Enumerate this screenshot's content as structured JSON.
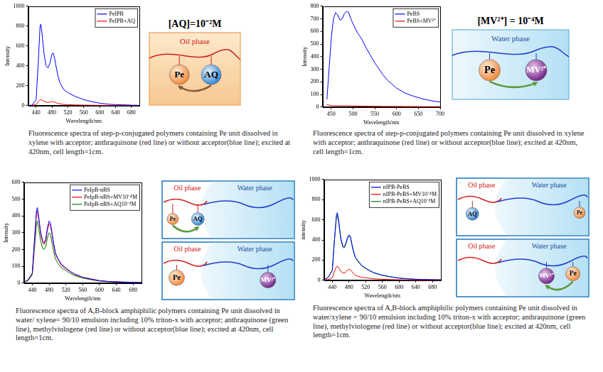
{
  "chart_data": [
    {
      "type": "line",
      "x_label": "Wavelength/nm",
      "y_label": "Intensity",
      "caption": "Fluorescence spectra of step-p-conjugated polymers containing Pe unit dissolved in xylene with acceptor; anthraquinone (red line) or without acceptor(blue line); excited at 420nm, cell length=1cm.",
      "x": [
        420,
        430,
        440,
        445,
        450,
        452,
        455,
        460,
        465,
        470,
        475,
        480,
        483,
        487,
        490,
        495,
        500,
        510,
        520,
        530,
        540,
        560,
        580,
        600,
        620,
        640,
        660,
        680,
        700
      ],
      "series": [
        {
          "name": "PeIPB",
          "color": "#0000ff",
          "values": [
            2,
            5,
            60,
            400,
            800,
            820,
            720,
            520,
            400,
            380,
            430,
            520,
            530,
            470,
            400,
            300,
            230,
            160,
            130,
            110,
            90,
            60,
            40,
            25,
            15,
            10,
            8,
            5,
            3
          ]
        },
        {
          "name": "PeIPB+AQ",
          "color": "#ff0000",
          "values": [
            2,
            3,
            10,
            40,
            60,
            62,
            55,
            45,
            35,
            32,
            35,
            40,
            40,
            36,
            30,
            22,
            18,
            12,
            10,
            8,
            7,
            5,
            4,
            3,
            2,
            2,
            1,
            1,
            1
          ]
        }
      ],
      "xlim": [
        420,
        700
      ],
      "xticks": [
        440,
        480,
        520,
        560,
        600,
        640,
        680
      ],
      "ylim": [
        0,
        1000
      ],
      "yticks": [
        0,
        200,
        400,
        600,
        800,
        1000
      ],
      "grid": false,
      "legend": "upper right"
    },
    {
      "type": "line",
      "x_label": "Wavelength/nm",
      "y_label": "Intensity",
      "caption": "Fluorescence spectra of step-p-conjugated polymers containing Pe unit dissolved in xylene with acceptor; anthraquinone (red line) or without acceptor(blue line); excited at 420nm, cell length=1cm.",
      "x": [
        440,
        445,
        450,
        455,
        460,
        465,
        470,
        475,
        480,
        485,
        490,
        495,
        500,
        510,
        520,
        530,
        540,
        550,
        560,
        570,
        580,
        590,
        600,
        620,
        640,
        660,
        680,
        700
      ],
      "series": [
        {
          "name": "PeBS",
          "color": "#0000ff",
          "values": [
            60,
            300,
            550,
            700,
            750,
            730,
            690,
            700,
            740,
            760,
            750,
            700,
            660,
            590,
            540,
            470,
            410,
            350,
            300,
            250,
            210,
            180,
            150,
            110,
            85,
            65,
            50,
            40
          ]
        },
        {
          "name": "PeBS+MV²⁺",
          "color": "#ff0000",
          "values": [
            20,
            15,
            12,
            10,
            10,
            10,
            10,
            10,
            10,
            10,
            10,
            9,
            9,
            8,
            8,
            7,
            7,
            6,
            6,
            5,
            5,
            5,
            5,
            4,
            4,
            3,
            3,
            3
          ]
        }
      ],
      "xlim": [
        430,
        700
      ],
      "xticks": [
        450,
        500,
        550,
        600,
        650,
        700
      ],
      "ylim": [
        0,
        800
      ],
      "yticks": [
        0,
        100,
        200,
        300,
        400,
        500,
        600,
        700,
        800
      ],
      "grid": false,
      "legend": "upper right"
    },
    {
      "type": "line",
      "x_label": "Wavelength/nm",
      "y_label": "Intensity",
      "caption": "Fluorescence spectra of A,B-block amphiphilic polymers containing Pe unit dissolved in water/ xylene= 90/10 emulsion including 10% triton-x with acceptor; anthraquinone (green line), methylviologene (red line) or without acceptor(blue line); excited at 420nm, cell length=1cm.",
      "x": [
        420,
        430,
        440,
        445,
        450,
        452,
        455,
        460,
        465,
        468,
        472,
        476,
        480,
        483,
        487,
        490,
        495,
        500,
        510,
        520,
        530,
        540,
        560,
        580,
        600,
        620,
        640,
        660,
        680,
        700
      ],
      "series": [
        {
          "name": "PeIpB-nBS",
          "color": "#0000ff",
          "values": [
            5,
            20,
            60,
            250,
            430,
            450,
            400,
            300,
            250,
            240,
            260,
            330,
            370,
            360,
            300,
            250,
            180,
            150,
            110,
            90,
            70,
            55,
            35,
            25,
            15,
            10,
            8,
            6,
            5,
            4
          ]
        },
        {
          "name": "PeIpB-nBS+MV10⁻⁴M",
          "color": "#ff0000",
          "values": [
            5,
            20,
            55,
            240,
            410,
            430,
            385,
            290,
            240,
            230,
            250,
            315,
            355,
            345,
            290,
            240,
            175,
            145,
            105,
            85,
            68,
            52,
            33,
            23,
            14,
            10,
            8,
            6,
            5,
            4
          ]
        },
        {
          "name": "PeIpB-nBS+AQ10⁻²M",
          "color": "#008000",
          "values": [
            5,
            15,
            50,
            200,
            350,
            370,
            330,
            250,
            205,
            200,
            215,
            270,
            300,
            290,
            240,
            200,
            145,
            120,
            90,
            75,
            58,
            45,
            30,
            20,
            12,
            8,
            6,
            5,
            4,
            3
          ]
        }
      ],
      "xlim": [
        420,
        700
      ],
      "xticks": [
        440,
        480,
        520,
        560,
        600,
        640,
        680
      ],
      "ylim": [
        0,
        600
      ],
      "yticks": [
        0,
        100,
        200,
        300,
        400,
        500,
        600
      ],
      "grid": false,
      "legend": "upper right"
    },
    {
      "type": "line",
      "x_label": "Wavelength/nm",
      "y_label": "intensity",
      "caption": "Fluorescence spectra of A,B-block amphiphilic polymers containing Pe unit dissolved in water/xylene = 90/10 emulsion including 10% triton-x with acceptor; anthraquinone (green line), methylviologene (red line) or without acceptor(blue line); excited at 420nm, cell length=1cm.",
      "x": [
        420,
        430,
        440,
        445,
        450,
        452,
        455,
        460,
        465,
        468,
        472,
        476,
        480,
        483,
        487,
        490,
        495,
        500,
        510,
        520,
        530,
        540,
        560,
        580,
        600,
        620,
        640,
        660,
        680,
        700
      ],
      "series": [
        {
          "name": "nIPB-PeBS",
          "color": "#0000ff",
          "values": [
            5,
            30,
            100,
            400,
            650,
            670,
            600,
            430,
            340,
            330,
            360,
            420,
            450,
            440,
            360,
            300,
            230,
            200,
            150,
            120,
            95,
            75,
            50,
            35,
            22,
            15,
            10,
            8,
            6,
            5
          ]
        },
        {
          "name": "nIPB-PeBS+MV10⁻⁴M",
          "color": "#ff0000",
          "values": [
            2,
            8,
            25,
            90,
            135,
            140,
            125,
            90,
            75,
            72,
            80,
            100,
            110,
            105,
            85,
            70,
            50,
            42,
            30,
            25,
            20,
            15,
            10,
            7,
            5,
            4,
            3,
            2,
            2,
            1
          ]
        },
        {
          "name": "nIPB-PeBS+AQ10⁻³M",
          "color": "#008000",
          "values": [
            5,
            28,
            95,
            385,
            630,
            650,
            580,
            415,
            330,
            320,
            350,
            410,
            440,
            430,
            350,
            290,
            225,
            195,
            145,
            115,
            92,
            72,
            48,
            33,
            21,
            14,
            10,
            8,
            6,
            5
          ]
        }
      ],
      "xlim": [
        420,
        700
      ],
      "xticks": [
        440,
        480,
        520,
        560,
        600,
        640,
        680
      ],
      "ylim": [
        0,
        1000
      ],
      "yticks": [
        0,
        200,
        400,
        600,
        800,
        1000
      ],
      "grid": false,
      "legend": "upper right"
    }
  ],
  "diagrams": [
    {
      "title": "[AQ]=10⁻²M",
      "phases": [
        "Oil phase"
      ],
      "molecules": [
        "Pe",
        "AQ"
      ]
    },
    {
      "title": "[MV²⁺] = 10⁻⁴M",
      "phases": [
        "Water phase"
      ],
      "molecules": [
        "Pe",
        "MV²⁺"
      ]
    },
    {
      "panels": [
        {
          "phases": [
            "Oil phase",
            "Water phase"
          ],
          "molecules": [
            "Pe",
            "AQ"
          ]
        },
        {
          "phases": [
            "Oil phase",
            "Water phase"
          ],
          "molecules": [
            "Pe",
            "MV²⁺"
          ]
        }
      ]
    },
    {
      "panels": [
        {
          "phases": [
            "Oil phase",
            "Water phase"
          ],
          "molecules": [
            "AQ",
            "Pe"
          ]
        },
        {
          "phases": [
            "Oil phase",
            "Water phase"
          ],
          "molecules": [
            "MV²⁺",
            "Pe"
          ]
        }
      ]
    }
  ]
}
